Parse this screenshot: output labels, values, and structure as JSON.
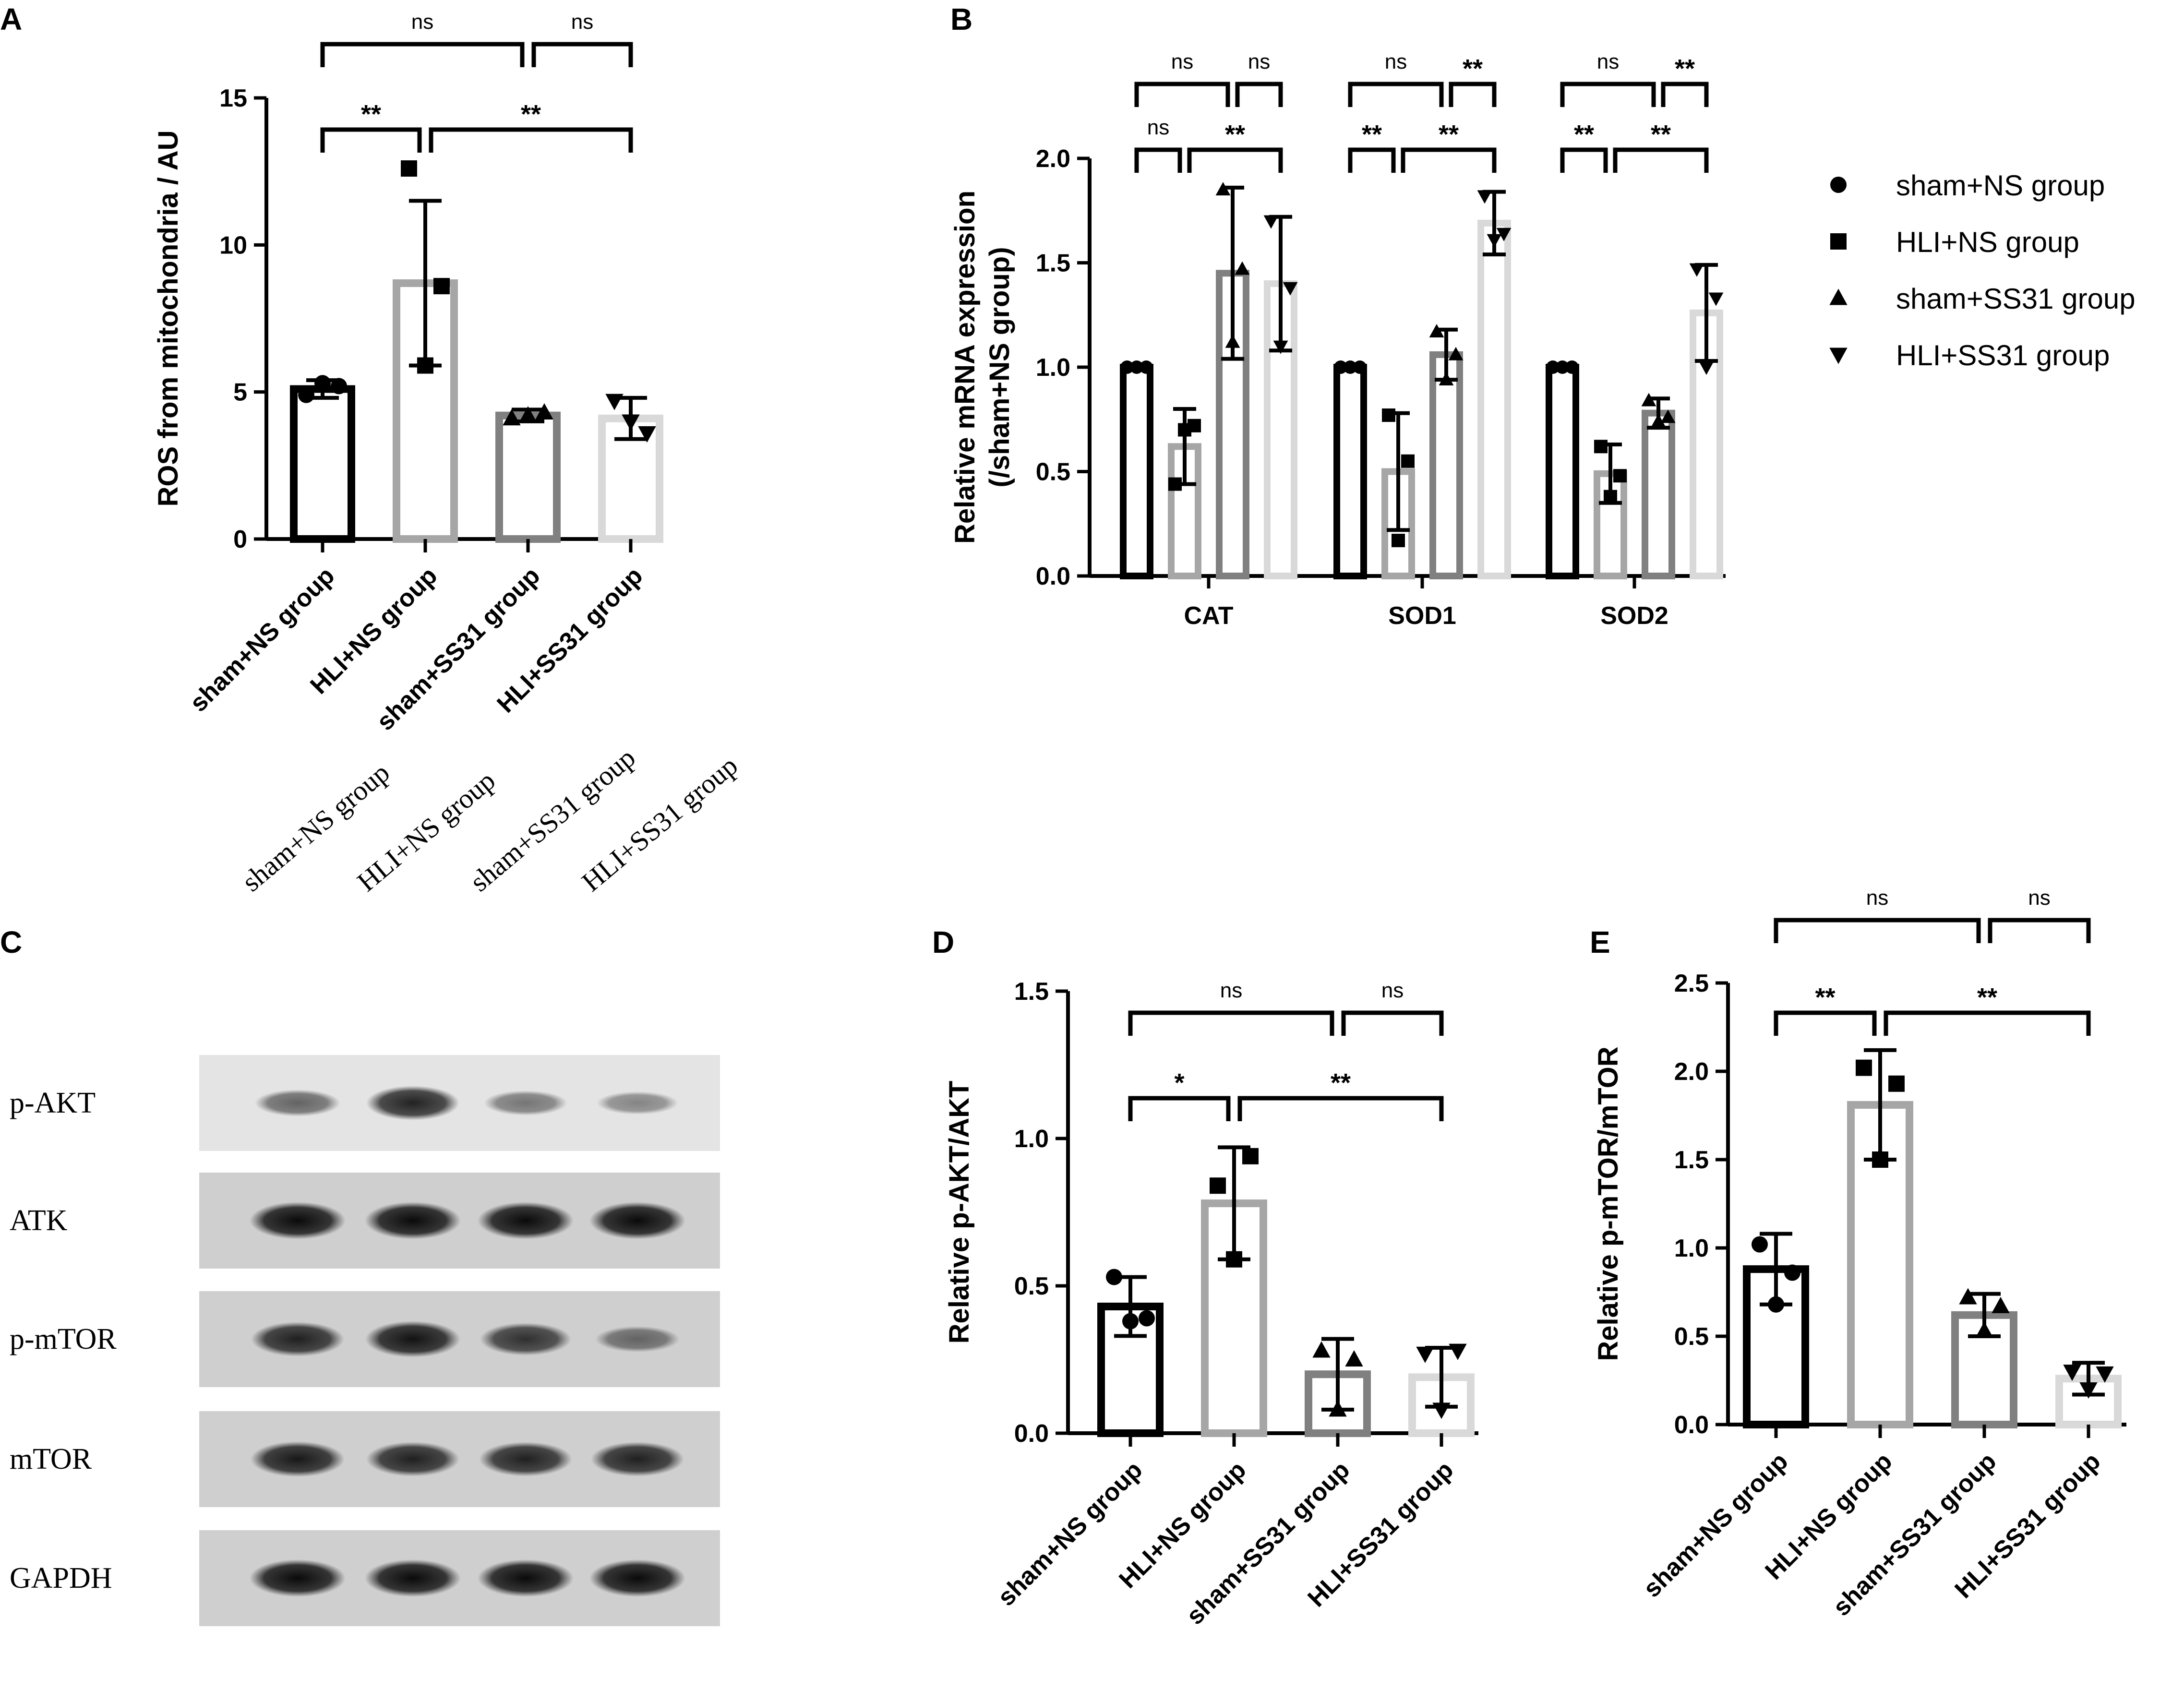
{
  "colors": {
    "sham_NS": "#000000",
    "HLI_NS": "#a6a6a6",
    "sham_SS31": "#808080",
    "HLI_SS31": "#d9d9d9"
  },
  "chart_data": [
    {
      "panel": "A",
      "type": "bar",
      "ylabel": "ROS from mitochondria / AU",
      "ylim": [
        0,
        15
      ],
      "yticks": [
        "0",
        "5",
        "10",
        "15"
      ],
      "categories": [
        "sham+NS group",
        "HLI+NS group",
        "sham+SS31 group",
        "HLI+SS31 group"
      ],
      "values": [
        5.1,
        8.7,
        4.2,
        4.1
      ],
      "errors": [
        0.3,
        2.8,
        0.2,
        0.7
      ],
      "points": [
        [
          4.9,
          5.2,
          5.3
        ],
        [
          12.6,
          8.6,
          5.9
        ],
        [
          4.1,
          4.3,
          4.2
        ],
        [
          4.7,
          3.6,
          4.0
        ]
      ],
      "significance": [
        {
          "from": 0,
          "to": 1,
          "label": "**",
          "level": 0
        },
        {
          "from": 1,
          "to": 3,
          "label": "**",
          "level": 0
        },
        {
          "from": 0,
          "to": 2,
          "label": "ns",
          "level": 1
        },
        {
          "from": 2,
          "to": 3,
          "label": "ns",
          "level": 1
        }
      ]
    },
    {
      "panel": "B",
      "type": "bar",
      "ylabel_line1": "Relative mRNA expression",
      "ylabel_line2": "(/sham+NS group)",
      "ylim": [
        0,
        2
      ],
      "yticks": [
        "0.0",
        "0.5",
        "1.0",
        "1.5",
        "2.0"
      ],
      "categories": [
        "CAT",
        "SOD1",
        "SOD2"
      ],
      "series": [
        {
          "name": "sham+NS group",
          "marker": "circle",
          "values": [
            1.0,
            1.0,
            1.0
          ],
          "errors": [
            0,
            0,
            0
          ],
          "points": [
            [
              1,
              1,
              1
            ],
            [
              1,
              1,
              1
            ],
            [
              1,
              1,
              1
            ]
          ]
        },
        {
          "name": "HLI+NS group",
          "marker": "square",
          "values": [
            0.62,
            0.5,
            0.49
          ],
          "errors": [
            0.18,
            0.28,
            0.14
          ],
          "points": [
            [
              0.44,
              0.72,
              0.7
            ],
            [
              0.77,
              0.55,
              0.17
            ],
            [
              0.62,
              0.48,
              0.38
            ]
          ]
        },
        {
          "name": "sham+SS31 group",
          "marker": "triangle-up",
          "values": [
            1.45,
            1.06,
            0.78
          ],
          "errors": [
            0.41,
            0.12,
            0.07
          ],
          "points": [
            [
              1.85,
              1.47,
              1.12
            ],
            [
              1.17,
              1.06,
              0.94
            ],
            [
              0.84,
              0.76,
              0.74
            ]
          ]
        },
        {
          "name": "HLI+SS31 group",
          "marker": "triangle-down",
          "values": [
            1.4,
            1.69,
            1.26
          ],
          "errors": [
            0.32,
            0.15,
            0.23
          ],
          "points": [
            [
              1.7,
              1.38,
              1.1
            ],
            [
              1.82,
              1.64,
              1.61
            ],
            [
              1.47,
              1.33,
              1.0
            ]
          ]
        }
      ],
      "significance": [
        {
          "group": 0,
          "from": 0,
          "to": 1,
          "label": "ns",
          "level": 0
        },
        {
          "group": 0,
          "from": 1,
          "to": 3,
          "label": "**",
          "level": 0
        },
        {
          "group": 0,
          "from": 0,
          "to": 2,
          "label": "ns",
          "level": 1
        },
        {
          "group": 0,
          "from": 2,
          "to": 3,
          "label": "ns",
          "level": 1
        },
        {
          "group": 1,
          "from": 0,
          "to": 1,
          "label": "**",
          "level": 0
        },
        {
          "group": 1,
          "from": 1,
          "to": 3,
          "label": "**",
          "level": 0
        },
        {
          "group": 1,
          "from": 0,
          "to": 2,
          "label": "ns",
          "level": 1
        },
        {
          "group": 1,
          "from": 2,
          "to": 3,
          "label": "**",
          "level": 1
        },
        {
          "group": 2,
          "from": 0,
          "to": 1,
          "label": "**",
          "level": 0
        },
        {
          "group": 2,
          "from": 1,
          "to": 3,
          "label": "**",
          "level": 0
        },
        {
          "group": 2,
          "from": 0,
          "to": 2,
          "label": "ns",
          "level": 1
        },
        {
          "group": 2,
          "from": 2,
          "to": 3,
          "label": "**",
          "level": 1
        }
      ],
      "legend": [
        {
          "label": "sham+NS group",
          "marker": "circle"
        },
        {
          "label": "HLI+NS group",
          "marker": "square"
        },
        {
          "label": "sham+SS31 group",
          "marker": "triangle-up"
        },
        {
          "label": "HLI+SS31 group",
          "marker": "triangle-down"
        }
      ],
      "legend_position": "right"
    },
    {
      "panel": "D",
      "type": "bar",
      "ylabel": "Relative p-AKT/AKT",
      "ylim": [
        0,
        1.5
      ],
      "yticks": [
        "0.0",
        "0.5",
        "1.0",
        "1.5"
      ],
      "categories": [
        "sham+NS group",
        "HLI+NS group",
        "sham+SS31 group",
        "HLI+SS31 group"
      ],
      "values": [
        0.43,
        0.78,
        0.2,
        0.19
      ],
      "errors": [
        0.1,
        0.19,
        0.12,
        0.1
      ],
      "points": [
        [
          0.53,
          0.39,
          0.38
        ],
        [
          0.84,
          0.94,
          0.59
        ],
        [
          0.28,
          0.25,
          0.08
        ],
        [
          0.27,
          0.28,
          0.08
        ]
      ],
      "significance": [
        {
          "from": 0,
          "to": 1,
          "label": "*",
          "level": 0
        },
        {
          "from": 1,
          "to": 3,
          "label": "**",
          "level": 0
        },
        {
          "from": 0,
          "to": 2,
          "label": "ns",
          "level": 1
        },
        {
          "from": 2,
          "to": 3,
          "label": "ns",
          "level": 1
        }
      ]
    },
    {
      "panel": "E",
      "type": "bar",
      "ylabel": "Relative p-mTOR/mTOR",
      "ylim": [
        0,
        2.5
      ],
      "yticks": [
        "0.0",
        "0.5",
        "1.0",
        "1.5",
        "2.0",
        "2.5"
      ],
      "categories": [
        "sham+NS group",
        "HLI+NS group",
        "sham+SS31 group",
        "HLI+SS31 group"
      ],
      "values": [
        0.88,
        1.81,
        0.62,
        0.26
      ],
      "errors": [
        0.2,
        0.31,
        0.12,
        0.09
      ],
      "points": [
        [
          1.02,
          0.86,
          0.68
        ],
        [
          2.02,
          1.93,
          1.5
        ],
        [
          0.72,
          0.67,
          0.53
        ],
        [
          0.3,
          0.29,
          0.2
        ]
      ],
      "significance": [
        {
          "from": 0,
          "to": 1,
          "label": "**",
          "level": 0
        },
        {
          "from": 1,
          "to": 3,
          "label": "**",
          "level": 0
        },
        {
          "from": 0,
          "to": 2,
          "label": "ns",
          "level": 1
        },
        {
          "from": 2,
          "to": 3,
          "label": "ns",
          "level": 1
        }
      ]
    }
  ],
  "western_blot": {
    "panel": "C",
    "lanes": [
      "sham+NS group",
      "HLI+NS group",
      "sham+SS31 group",
      "HLI+SS31 group"
    ],
    "rows": [
      {
        "label": "p-AKT",
        "intensity": [
          0.45,
          0.85,
          0.35,
          0.25
        ]
      },
      {
        "label": "ATK",
        "intensity": [
          1.0,
          1.0,
          1.0,
          1.0
        ]
      },
      {
        "label": "p-mTOR",
        "intensity": [
          0.85,
          0.95,
          0.75,
          0.4
        ]
      },
      {
        "label": "mTOR",
        "intensity": [
          0.9,
          0.85,
          0.85,
          0.85
        ]
      },
      {
        "label": "GAPDH",
        "intensity": [
          1.0,
          1.0,
          1.0,
          1.0
        ]
      }
    ]
  }
}
